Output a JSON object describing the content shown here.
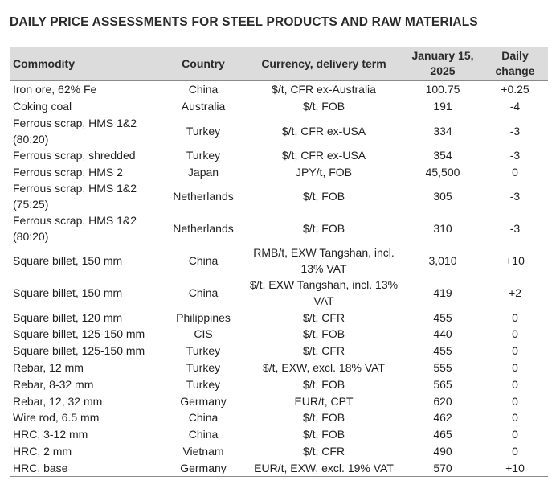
{
  "title": "DAILY PRICE ASSESSMENTS FOR STEEL PRODUCTS AND RAW MATERIALS",
  "headers": {
    "commodity": "Commodity",
    "country": "Country",
    "term": "Currency, delivery term",
    "price_line1": "January 15,",
    "price_line2": "2025",
    "change_line1": "Daily",
    "change_line2": "change"
  },
  "rows": [
    {
      "commodity": "Iron ore, 62% Fe",
      "country": "China",
      "term": "$/t, CFR ex-Australia",
      "price": "100.75",
      "change": "+0.25"
    },
    {
      "commodity": "Coking coal",
      "country": "Australia",
      "term": "$/t, FOB",
      "price": "191",
      "change": "-4"
    },
    {
      "commodity": "Ferrous scrap, HMS 1&2 (80:20)",
      "country": "Turkey",
      "term": "$/t, CFR ex-USA",
      "price": "334",
      "change": "-3"
    },
    {
      "commodity": "Ferrous scrap, shredded",
      "country": "Turkey",
      "term": "$/t, CFR ex-USA",
      "price": "354",
      "change": "-3"
    },
    {
      "commodity": "Ferrous scrap, HMS 2",
      "country": "Japan",
      "term": "JPY/t, FOB",
      "price": "45,500",
      "change": "0"
    },
    {
      "commodity": "Ferrous scrap, HMS 1&2 (75:25)",
      "country": "Netherlands",
      "term": "$/t, FOB",
      "price": "305",
      "change": "-3"
    },
    {
      "commodity": "Ferrous scrap, HMS 1&2 (80:20)",
      "country": "Netherlands",
      "term": "$/t, FOB",
      "price": "310",
      "change": "-3"
    },
    {
      "commodity": "Square billet, 150 mm",
      "country": "China",
      "term": "RMB/t, EXW Tangshan, incl. 13% VAT",
      "price": "3,010",
      "change": "+10"
    },
    {
      "commodity": "Square billet, 150 mm",
      "country": "China",
      "term": "$/t, EXW Tangshan, incl. 13% VAT",
      "price": "419",
      "change": "+2"
    },
    {
      "commodity": "Square billet, 120 mm",
      "country": "Philippines",
      "term": "$/t, CFR",
      "price": "455",
      "change": "0"
    },
    {
      "commodity": "Square billet, 125-150 mm",
      "country": "CIS",
      "term": "$/t, FOB",
      "price": "440",
      "change": "0"
    },
    {
      "commodity": "Square billet, 125-150 mm",
      "country": "Turkey",
      "term": "$/t, CFR",
      "price": "455",
      "change": "0"
    },
    {
      "commodity": "Rebar, 12 mm",
      "country": "Turkey",
      "term": "$/t, EXW, excl. 18% VAT",
      "price": "555",
      "change": "0"
    },
    {
      "commodity": "Rebar, 8-32 mm",
      "country": "Turkey",
      "term": "$/t, FOB",
      "price": "565",
      "change": "0"
    },
    {
      "commodity": "Rebar, 12, 32 mm",
      "country": "Germany",
      "term": "EUR/t, CPT",
      "price": "620",
      "change": "0"
    },
    {
      "commodity": "Wire rod, 6.5 mm",
      "country": "China",
      "term": "$/t, FOB",
      "price": "462",
      "change": "0"
    },
    {
      "commodity": "HRC, 3-12 mm",
      "country": "China",
      "term": "$/t, FOB",
      "price": "465",
      "change": "0"
    },
    {
      "commodity": "HRC, 2 mm",
      "country": "Vietnam",
      "term": "$/t, CFR",
      "price": "490",
      "change": "0"
    },
    {
      "commodity": "HRC, base",
      "country": "Germany",
      "term": "EUR/t, EXW, excl. 19% VAT",
      "price": "570",
      "change": "+10"
    }
  ]
}
